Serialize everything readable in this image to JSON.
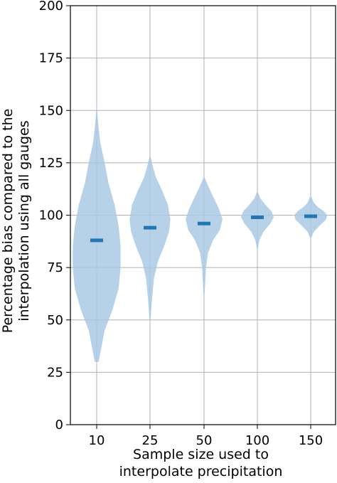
{
  "chart_data": {
    "type": "violin",
    "title": "",
    "xlabel": [
      "Sample size used to",
      "interpolate precipitation"
    ],
    "ylabel": [
      "Percentage bias compared to the",
      "interpolation using all gauges"
    ],
    "categories": [
      "10",
      "25",
      "50",
      "100",
      "150"
    ],
    "ylim": [
      0,
      200
    ],
    "yticks": [
      0,
      25,
      50,
      75,
      100,
      125,
      150,
      175,
      200
    ],
    "grid": true,
    "colors": {
      "violin_fill": "#a9c9e4",
      "median": "#1f77b4",
      "grid": "#b0b0b0",
      "axis": "#000000"
    },
    "series": [
      {
        "category": "10",
        "median": 88,
        "min": 30,
        "max": 152,
        "profile": [
          [
            30,
            0.2
          ],
          [
            45,
            0.8
          ],
          [
            55,
            1.6
          ],
          [
            65,
            2.2
          ],
          [
            75,
            2.4
          ],
          [
            85,
            2.4
          ],
          [
            95,
            2.2
          ],
          [
            105,
            1.8
          ],
          [
            115,
            1.2
          ],
          [
            125,
            0.8
          ],
          [
            135,
            0.35
          ],
          [
            145,
            0.12
          ],
          [
            152,
            0.02
          ]
        ]
      },
      {
        "category": "25",
        "median": 94,
        "min": 50,
        "max": 128,
        "profile": [
          [
            50,
            0.05
          ],
          [
            60,
            0.2
          ],
          [
            70,
            0.4
          ],
          [
            78,
            0.8
          ],
          [
            85,
            1.4
          ],
          [
            92,
            1.9
          ],
          [
            98,
            2.05
          ],
          [
            105,
            1.8
          ],
          [
            112,
            1.2
          ],
          [
            118,
            0.6
          ],
          [
            123,
            0.3
          ],
          [
            128,
            0.05
          ]
        ]
      },
      {
        "category": "50",
        "median": 96,
        "min": 62,
        "max": 118,
        "profile": [
          [
            62,
            0.05
          ],
          [
            75,
            0.2
          ],
          [
            82,
            0.4
          ],
          [
            88,
            0.9
          ],
          [
            93,
            1.6
          ],
          [
            98,
            1.85
          ],
          [
            103,
            1.5
          ],
          [
            108,
            1.0
          ],
          [
            113,
            0.5
          ],
          [
            118,
            0.05
          ]
        ]
      },
      {
        "category": "100",
        "median": 99,
        "min": 84,
        "max": 111,
        "profile": [
          [
            84,
            0.05
          ],
          [
            88,
            0.2
          ],
          [
            92,
            0.6
          ],
          [
            96,
            1.3
          ],
          [
            99,
            1.65
          ],
          [
            102,
            1.4
          ],
          [
            105,
            0.8
          ],
          [
            108,
            0.3
          ],
          [
            111,
            0.05
          ]
        ]
      },
      {
        "category": "150",
        "median": 99.5,
        "min": 89,
        "max": 109,
        "profile": [
          [
            89,
            0.05
          ],
          [
            92,
            0.3
          ],
          [
            95,
            0.9
          ],
          [
            98,
            1.55
          ],
          [
            100,
            1.65
          ],
          [
            102,
            1.3
          ],
          [
            104,
            0.7
          ],
          [
            106,
            0.3
          ],
          [
            109,
            0.05
          ]
        ]
      }
    ]
  }
}
